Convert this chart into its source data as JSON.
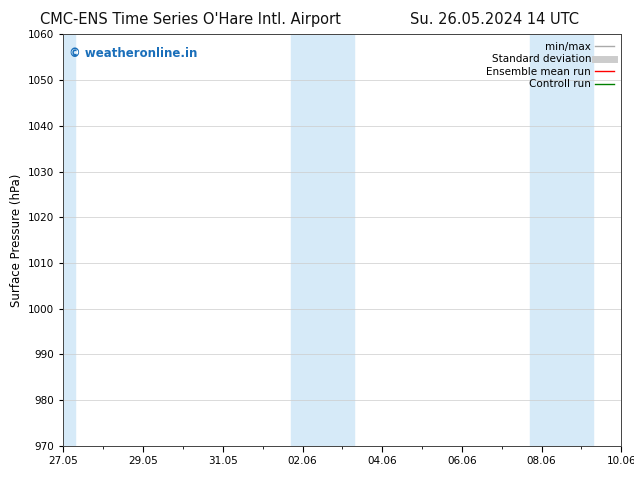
{
  "title_left": "CMC-ENS Time Series O'Hare Intl. Airport",
  "title_right": "Su. 26.05.2024 14 UTC",
  "ylabel": "Surface Pressure (hPa)",
  "ylim": [
    970,
    1060
  ],
  "yticks": [
    970,
    980,
    990,
    1000,
    1010,
    1020,
    1030,
    1040,
    1050,
    1060
  ],
  "xtick_labels": [
    "27.05",
    "29.05",
    "31.05",
    "02.06",
    "04.06",
    "06.06",
    "08.06",
    "10.06"
  ],
  "xtick_positions": [
    0,
    2,
    4,
    6,
    8,
    10,
    12,
    14
  ],
  "x_total": 14,
  "shaded_bands": [
    {
      "x_start": 0.0,
      "x_end": 0.3,
      "color": "#d6eaf8"
    },
    {
      "x_start": 5.7,
      "x_end": 7.3,
      "color": "#d6eaf8"
    },
    {
      "x_start": 11.7,
      "x_end": 13.3,
      "color": "#d6eaf8"
    }
  ],
  "watermark_text": "© weatheronline.in",
  "watermark_color": "#1a6fba",
  "legend_entries": [
    {
      "label": "min/max",
      "color": "#aaaaaa",
      "lw": 1.0,
      "style": "solid"
    },
    {
      "label": "Standard deviation",
      "color": "#cccccc",
      "lw": 5,
      "style": "solid"
    },
    {
      "label": "Ensemble mean run",
      "color": "red",
      "lw": 1.0,
      "style": "solid"
    },
    {
      "label": "Controll run",
      "color": "green",
      "lw": 1.0,
      "style": "solid"
    }
  ],
  "background_color": "#ffffff",
  "plot_bg_color": "#ffffff",
  "title_fontsize": 10.5,
  "axis_label_fontsize": 8.5,
  "tick_fontsize": 7.5,
  "legend_fontsize": 7.5
}
